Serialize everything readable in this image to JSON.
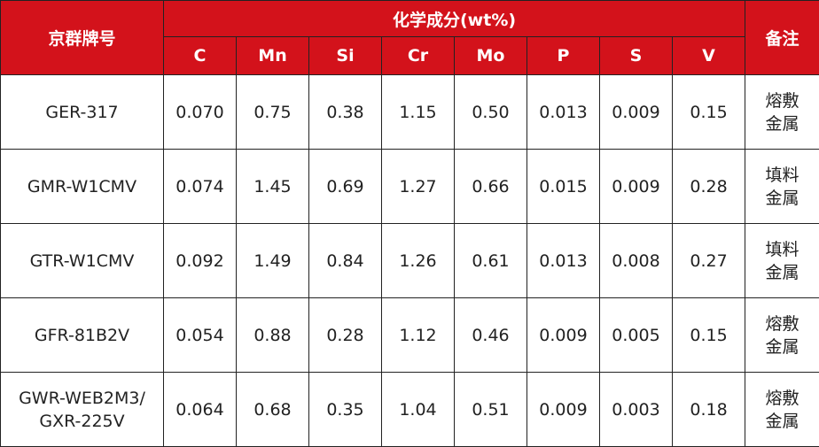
{
  "colors": {
    "header_bg": "#d3121b",
    "header_text": "#ffffff",
    "border": "#222222",
    "body_text": "#222222"
  },
  "header": {
    "grade": "京群牌号",
    "composition": "化学成分(wt%)",
    "remark": "备注",
    "elements": [
      "C",
      "Mn",
      "Si",
      "Cr",
      "Mo",
      "P",
      "S",
      "V"
    ]
  },
  "rows": [
    {
      "grade_lines": [
        "GER-317"
      ],
      "values": [
        "0.070",
        "0.75",
        "0.38",
        "1.15",
        "0.50",
        "0.013",
        "0.009",
        "0.15"
      ],
      "remark_lines": [
        "熔敷",
        "金属"
      ]
    },
    {
      "grade_lines": [
        "GMR-W1CMV"
      ],
      "values": [
        "0.074",
        "1.45",
        "0.69",
        "1.27",
        "0.66",
        "0.015",
        "0.009",
        "0.28"
      ],
      "remark_lines": [
        "填料",
        "金属"
      ]
    },
    {
      "grade_lines": [
        "GTR-W1CMV"
      ],
      "values": [
        "0.092",
        "1.49",
        "0.84",
        "1.26",
        "0.61",
        "0.013",
        "0.008",
        "0.27"
      ],
      "remark_lines": [
        "填料",
        "金属"
      ]
    },
    {
      "grade_lines": [
        "GFR-81B2V"
      ],
      "values": [
        "0.054",
        "0.88",
        "0.28",
        "1.12",
        "0.46",
        "0.009",
        "0.005",
        "0.15"
      ],
      "remark_lines": [
        "熔敷",
        "金属"
      ]
    },
    {
      "grade_lines": [
        "GWR-WEB2M3/",
        "GXR-225V"
      ],
      "values": [
        "0.064",
        "0.68",
        "0.35",
        "1.04",
        "0.51",
        "0.009",
        "0.003",
        "0.18"
      ],
      "remark_lines": [
        "熔敷",
        "金属"
      ]
    }
  ]
}
